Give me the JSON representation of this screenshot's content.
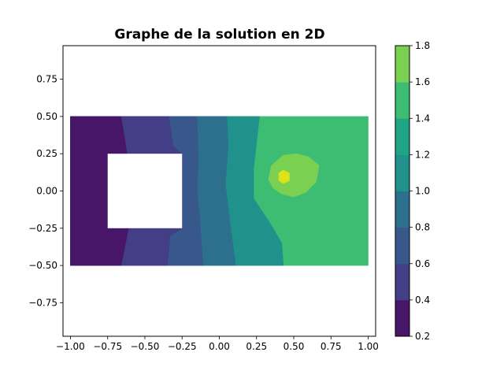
{
  "chart_data": {
    "type": "heatmap",
    "subtype": "filled-contour",
    "title": "Graphe de la solution en 2D",
    "xlabel": "",
    "ylabel": "",
    "xlim": [
      -1.05,
      1.05
    ],
    "ylim": [
      -0.975,
      0.975
    ],
    "x_ticks": [
      -1.0,
      -0.75,
      -0.5,
      -0.25,
      0.0,
      0.25,
      0.5,
      0.75,
      1.0
    ],
    "x_tick_labels": [
      "−1.00",
      "−0.75",
      "−0.50",
      "−0.25",
      "0.00",
      "0.25",
      "0.50",
      "0.75",
      "1.00"
    ],
    "y_ticks": [
      0.75,
      0.5,
      0.25,
      0.0,
      -0.25,
      -0.5,
      -0.75
    ],
    "y_tick_labels": [
      "0.75",
      "0.50",
      "0.25",
      "0.00",
      "−0.25",
      "−0.50",
      "−0.75"
    ],
    "domain": {
      "x": [
        -1.0,
        1.0
      ],
      "y": [
        -0.5,
        0.5
      ]
    },
    "hole": {
      "x": [
        -0.75,
        -0.25
      ],
      "y": [
        -0.25,
        0.25
      ]
    },
    "colorbar": {
      "levels": [
        0.2,
        0.4,
        0.6,
        0.8,
        1.0,
        1.2,
        1.4,
        1.6,
        1.8
      ],
      "tick_labels": [
        "0.2",
        "0.4",
        "0.6",
        "0.8",
        "1.0",
        "1.2",
        "1.4",
        "1.6",
        "1.8"
      ],
      "colors": [
        "#481668",
        "#433e85",
        "#38588c",
        "#2d708e",
        "#21918c",
        "#20a486",
        "#3dbc74",
        "#7ad151",
        "#dde318"
      ]
    },
    "contour_bands": [
      {
        "range": [
          0.2,
          0.4
        ],
        "color": "#481668",
        "x_left": -1.0,
        "right_boundary": [
          [
            -0.66,
            -0.5
          ],
          [
            -0.61,
            -0.25
          ],
          [
            -0.75,
            -0.25
          ],
          [
            -0.75,
            0.25
          ],
          [
            -0.62,
            0.25
          ],
          [
            -0.66,
            0.5
          ]
        ]
      },
      {
        "range": [
          0.4,
          0.6
        ],
        "color": "#433e85",
        "right_boundary": [
          [
            -0.35,
            -0.5
          ],
          [
            -0.33,
            -0.3
          ],
          [
            -0.25,
            -0.25
          ],
          [
            -0.25,
            0.25
          ],
          [
            -0.31,
            0.3
          ],
          [
            -0.34,
            0.5
          ]
        ]
      },
      {
        "range": [
          0.6,
          0.8
        ],
        "color": "#38588c",
        "right_boundary": [
          [
            -0.11,
            -0.5
          ],
          [
            -0.13,
            -0.2
          ],
          [
            -0.15,
            0.0
          ],
          [
            -0.14,
            0.2
          ],
          [
            -0.15,
            0.5
          ]
        ]
      },
      {
        "range": [
          0.8,
          1.0
        ],
        "color": "#2d708e",
        "right_boundary": [
          [
            0.11,
            -0.5
          ],
          [
            0.07,
            -0.2
          ],
          [
            0.04,
            0.05
          ],
          [
            0.06,
            0.3
          ],
          [
            0.05,
            0.5
          ]
        ]
      },
      {
        "range": [
          1.0,
          1.2
        ],
        "color": "#21918c",
        "right_boundary": [
          [
            0.43,
            -0.5
          ],
          [
            0.42,
            -0.35
          ],
          [
            0.33,
            -0.2
          ],
          [
            0.23,
            -0.05
          ],
          [
            0.23,
            0.15
          ],
          [
            0.27,
            0.5
          ]
        ]
      },
      {
        "range": [
          1.2,
          1.4
        ],
        "color": "#3dbc74",
        "x_right": 1.0,
        "right_boundary": [
          [
            1.0,
            -0.5
          ],
          [
            1.0,
            0.5
          ]
        ]
      }
    ],
    "islands": [
      {
        "range": [
          1.4,
          1.6
        ],
        "color": "#7ad151",
        "outline": [
          [
            0.43,
            0.24
          ],
          [
            0.52,
            0.25
          ],
          [
            0.6,
            0.23
          ],
          [
            0.67,
            0.17
          ],
          [
            0.65,
            0.06
          ],
          [
            0.58,
            -0.01
          ],
          [
            0.5,
            -0.04
          ],
          [
            0.42,
            -0.02
          ],
          [
            0.36,
            0.02
          ],
          [
            0.33,
            0.08
          ],
          [
            0.35,
            0.17
          ]
        ]
      },
      {
        "range": [
          1.6,
          1.8
        ],
        "color": "#dde318",
        "outline": [
          [
            0.43,
            0.14
          ],
          [
            0.47,
            0.12
          ],
          [
            0.47,
            0.07
          ],
          [
            0.43,
            0.05
          ],
          [
            0.4,
            0.07
          ],
          [
            0.4,
            0.12
          ]
        ]
      }
    ]
  }
}
